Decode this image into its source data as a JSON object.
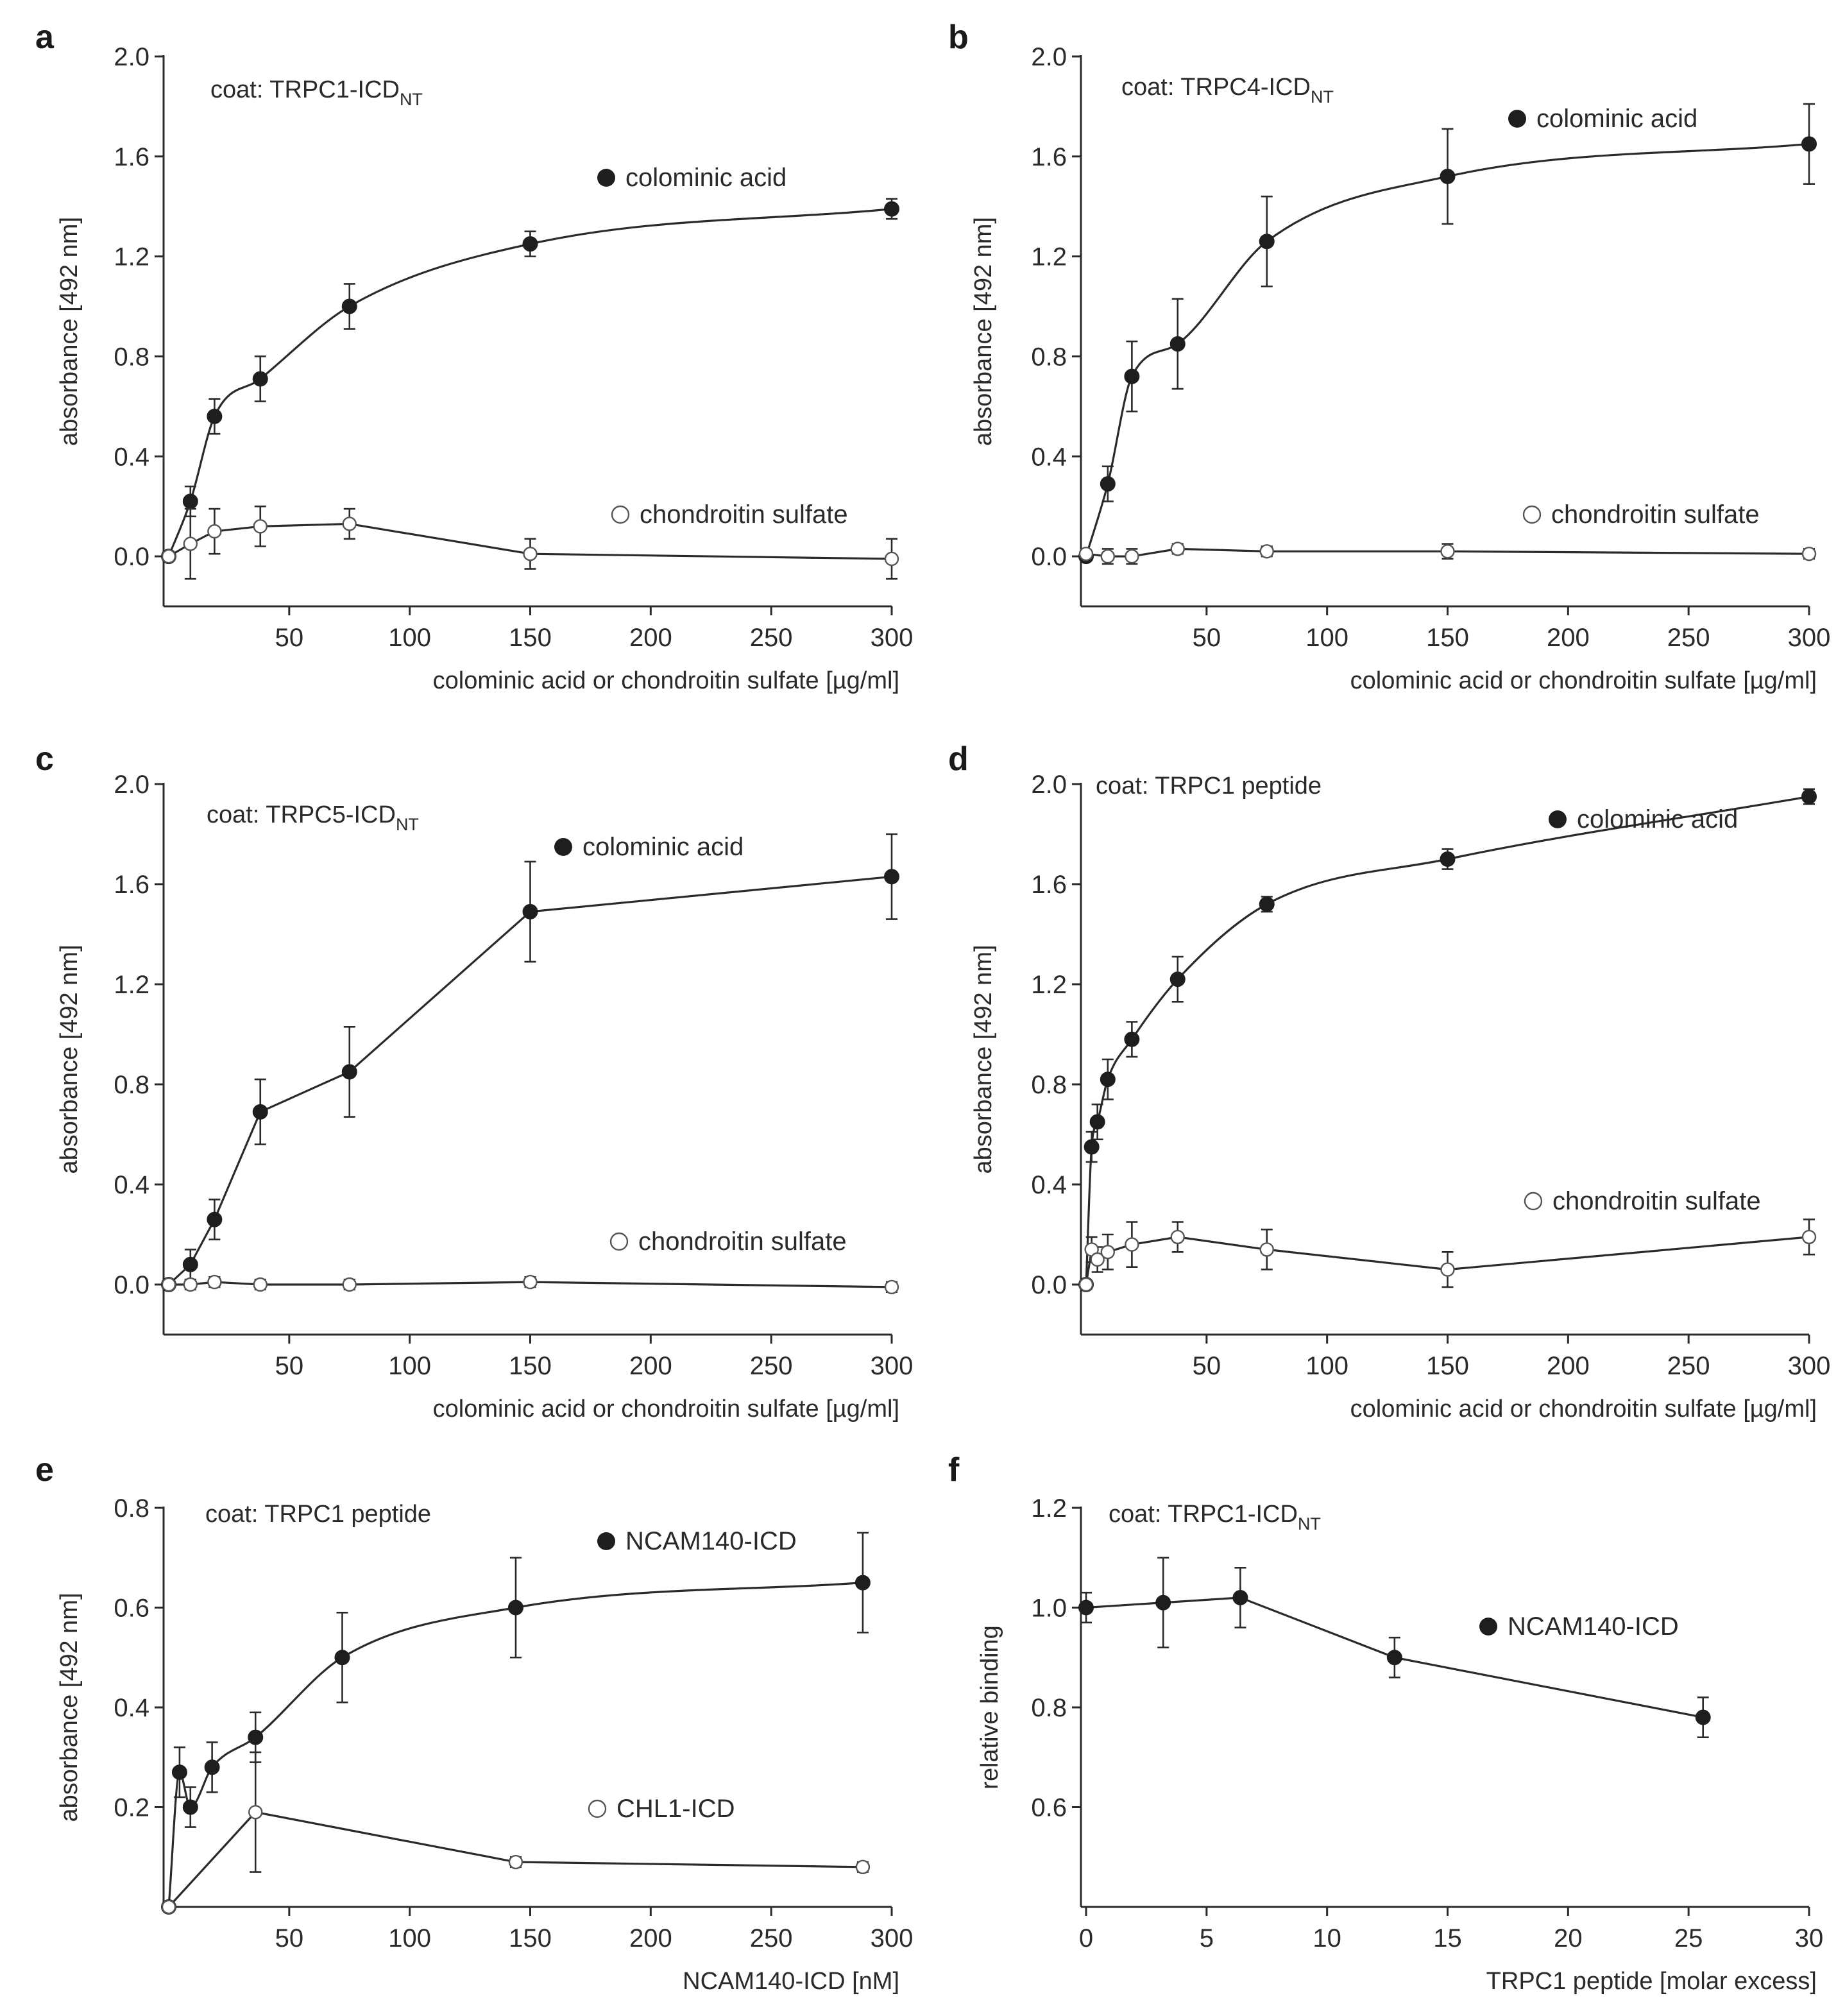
{
  "chart_data": [
    {
      "panel": "a",
      "type": "line",
      "coat": "coat: TRPC1-ICD",
      "coat_sub": "NT",
      "xlabel": "colominic acid or chondroitin sulfate  [µg/ml]",
      "ylabel": "absorbance [492 nm]",
      "xlim": [
        0,
        300
      ],
      "ylim": [
        -0.2,
        2.0
      ],
      "xticks": [
        50,
        100,
        150,
        200,
        250,
        300
      ],
      "yticks": [
        0.0,
        0.4,
        0.8,
        1.2,
        1.6,
        2.0
      ],
      "ytick_labels": [
        "0.0",
        "0.4",
        "0.8",
        "1.2",
        "1.6",
        "2.0"
      ],
      "series": [
        {
          "name": "colominic acid",
          "marker": "filled",
          "smooth": true,
          "x": [
            0,
            9,
            19,
            38,
            75,
            150,
            300
          ],
          "y": [
            0.0,
            0.22,
            0.56,
            0.71,
            1.0,
            1.25,
            1.39
          ],
          "err": [
            0,
            0.06,
            0.07,
            0.09,
            0.09,
            0.05,
            0.04
          ]
        },
        {
          "name": "chondroitin sulfate",
          "marker": "open",
          "smooth": false,
          "x": [
            0,
            9,
            19,
            38,
            75,
            150,
            300
          ],
          "y": [
            0.0,
            0.05,
            0.1,
            0.12,
            0.13,
            0.01,
            -0.01
          ],
          "err": [
            0,
            0.14,
            0.09,
            0.08,
            0.06,
            0.06,
            0.08
          ]
        }
      ]
    },
    {
      "panel": "b",
      "type": "line",
      "coat": "coat: TRPC4-ICD",
      "coat_sub": "NT",
      "xlabel": "colominic acid or chondroitin sulfate  [µg/ml]",
      "ylabel": "absorbance [492 nm]",
      "xlim": [
        0,
        300
      ],
      "ylim": [
        -0.2,
        2.0
      ],
      "xticks": [
        50,
        100,
        150,
        200,
        250,
        300
      ],
      "yticks": [
        0.0,
        0.4,
        0.8,
        1.2,
        1.6,
        2.0
      ],
      "ytick_labels": [
        "0.0",
        "0.4",
        "0.8",
        "1.2",
        "1.6",
        "2.0"
      ],
      "series": [
        {
          "name": "colominic acid",
          "marker": "filled",
          "smooth": true,
          "x": [
            0,
            9,
            19,
            38,
            75,
            150,
            300
          ],
          "y": [
            0.0,
            0.29,
            0.72,
            0.85,
            1.26,
            1.52,
            1.65
          ],
          "err": [
            0,
            0.07,
            0.14,
            0.18,
            0.18,
            0.19,
            0.16
          ]
        },
        {
          "name": "chondroitin sulfate",
          "marker": "open",
          "smooth": false,
          "x": [
            0,
            9,
            19,
            38,
            75,
            150,
            300
          ],
          "y": [
            0.01,
            0.0,
            0.0,
            0.03,
            0.02,
            0.02,
            0.01
          ],
          "err": [
            0,
            0.03,
            0.03,
            0.02,
            0.02,
            0.03,
            0.02
          ]
        }
      ]
    },
    {
      "panel": "c",
      "type": "line",
      "coat": "coat: TRPC5-ICD",
      "coat_sub": "NT",
      "xlabel": "colominic acid or chondroitin sulfate  [µg/ml]",
      "ylabel": "absorbance [492 nm]",
      "xlim": [
        0,
        300
      ],
      "ylim": [
        -0.2,
        2.0
      ],
      "xticks": [
        50,
        100,
        150,
        200,
        250,
        300
      ],
      "yticks": [
        0.0,
        0.4,
        0.8,
        1.2,
        1.6,
        2.0
      ],
      "ytick_labels": [
        "0.0",
        "0.4",
        "0.8",
        "1.2",
        "1.6",
        "2.0"
      ],
      "series": [
        {
          "name": "colominic acid",
          "marker": "filled",
          "smooth": false,
          "x": [
            0,
            9,
            19,
            38,
            75,
            150,
            300
          ],
          "y": [
            0.0,
            0.08,
            0.26,
            0.69,
            0.85,
            1.49,
            1.63
          ],
          "err": [
            0,
            0.06,
            0.08,
            0.13,
            0.18,
            0.2,
            0.17
          ]
        },
        {
          "name": "chondroitin sulfate",
          "marker": "open",
          "smooth": false,
          "x": [
            0,
            9,
            19,
            38,
            75,
            150,
            300
          ],
          "y": [
            0.0,
            0.0,
            0.01,
            0.0,
            0.0,
            0.01,
            -0.01
          ],
          "err": [
            0,
            0.02,
            0.02,
            0.02,
            0.02,
            0.02,
            0.02
          ]
        }
      ]
    },
    {
      "panel": "d",
      "type": "line",
      "coat": "coat: TRPC1 peptide",
      "coat_sub": "",
      "xlabel": "colominic acid or chondroitin sulfate  [µg/ml]",
      "ylabel": "absorbance [492 nm]",
      "xlim": [
        0,
        300
      ],
      "ylim": [
        -0.2,
        2.0
      ],
      "xticks": [
        50,
        100,
        150,
        200,
        250,
        300
      ],
      "yticks": [
        0.0,
        0.4,
        0.8,
        1.2,
        1.6,
        2.0
      ],
      "ytick_labels": [
        "0.0",
        "0.4",
        "0.8",
        "1.2",
        "1.6",
        "2.0"
      ],
      "series": [
        {
          "name": "colominic acid",
          "marker": "filled",
          "smooth": true,
          "x": [
            0,
            2.3,
            4.7,
            9,
            19,
            38,
            75,
            150,
            300
          ],
          "y": [
            0.0,
            0.55,
            0.65,
            0.82,
            0.98,
            1.22,
            1.52,
            1.7,
            1.95
          ],
          "err": [
            0,
            0.06,
            0.07,
            0.08,
            0.07,
            0.09,
            0.03,
            0.04,
            0.03
          ]
        },
        {
          "name": "chondroitin sulfate",
          "marker": "open",
          "smooth": false,
          "x": [
            0,
            2.3,
            4.7,
            9,
            19,
            38,
            75,
            150,
            300
          ],
          "y": [
            0.0,
            0.14,
            0.1,
            0.13,
            0.16,
            0.19,
            0.14,
            0.06,
            0.19
          ],
          "err": [
            0,
            0.05,
            0.05,
            0.07,
            0.09,
            0.06,
            0.08,
            0.07,
            0.07
          ]
        }
      ]
    },
    {
      "panel": "e",
      "type": "line",
      "coat": "coat: TRPC1 peptide",
      "coat_sub": "",
      "xlabel": "NCAM140-ICD [nM]",
      "ylabel": "absorbance [492 nm]",
      "xlim": [
        0,
        300
      ],
      "ylim": [
        0.0,
        0.8
      ],
      "xticks": [
        50,
        100,
        150,
        200,
        250,
        300
      ],
      "yticks": [
        0.2,
        0.4,
        0.6,
        0.8
      ],
      "ytick_labels": [
        "0.2",
        "0.4",
        "0.6",
        "0.8"
      ],
      "series": [
        {
          "name": "NCAM140-ICD",
          "marker": "filled",
          "smooth": true,
          "x": [
            0,
            4.5,
            9,
            18,
            36,
            72,
            144,
            288
          ],
          "y": [
            0.0,
            0.27,
            0.2,
            0.28,
            0.34,
            0.5,
            0.6,
            0.65
          ],
          "err": [
            0,
            0.05,
            0.04,
            0.05,
            0.05,
            0.09,
            0.1,
            0.1
          ]
        },
        {
          "name": "CHL1-ICD",
          "marker": "open",
          "smooth": false,
          "x": [
            0,
            36,
            144,
            288
          ],
          "y": [
            0.0,
            0.19,
            0.09,
            0.08
          ],
          "err": [
            0,
            0.12,
            0.01,
            0.01
          ]
        }
      ]
    },
    {
      "panel": "f",
      "type": "line",
      "coat": "coat: TRPC1-ICD",
      "coat_sub": "NT",
      "xlabel": "TRPC1 peptide  [molar excess]",
      "ylabel": "relative binding",
      "xlim": [
        0,
        30
      ],
      "ylim": [
        0.4,
        1.2
      ],
      "xticks": [
        0,
        5,
        10,
        15,
        20,
        25,
        30
      ],
      "yticks": [
        0.6,
        0.8,
        1.0,
        1.2
      ],
      "ytick_labels": [
        "0.6",
        "0.8",
        "1.0",
        "1.2"
      ],
      "series": [
        {
          "name": "NCAM140-ICD",
          "marker": "filled",
          "smooth": false,
          "x": [
            0,
            3.2,
            6.4,
            12.8,
            25.6
          ],
          "y": [
            1.0,
            1.01,
            1.02,
            0.9,
            0.78
          ],
          "err": [
            0.03,
            0.09,
            0.06,
            0.04,
            0.04
          ]
        }
      ]
    }
  ]
}
